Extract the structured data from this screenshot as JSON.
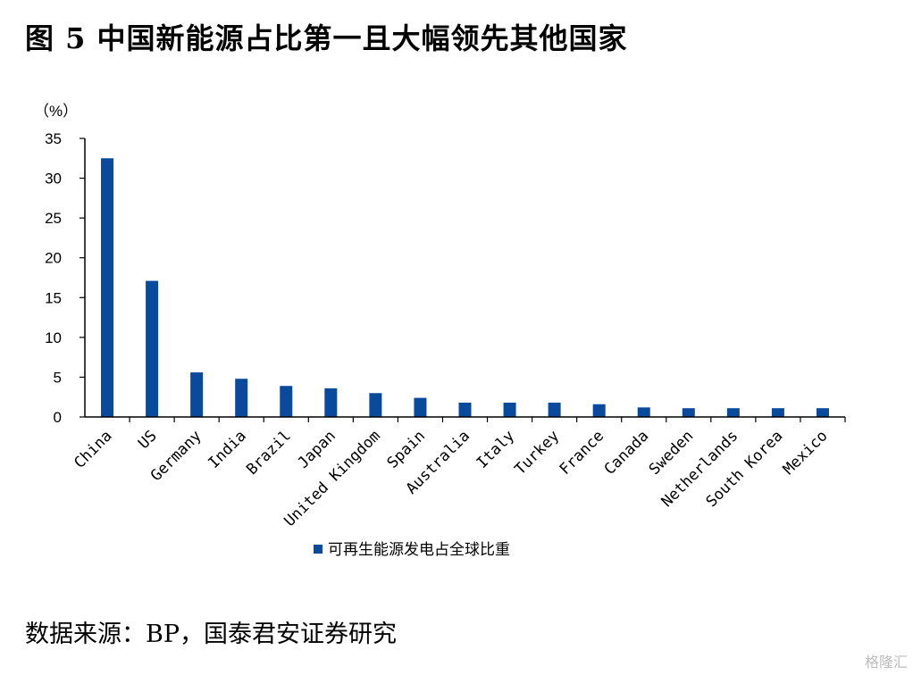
{
  "title": "图 5 中国新能源占比第一且大幅领先其他国家",
  "source": "数据来源：BP，国泰君安证券研究",
  "watermark": "格隆汇",
  "colors": {
    "bar": "#0a4a9c",
    "axis": "#000000"
  },
  "chart_data": {
    "type": "bar",
    "unit_label": "（%）",
    "ylim": [
      0,
      35
    ],
    "yticks": [
      0,
      5,
      10,
      15,
      20,
      25,
      30,
      35
    ],
    "grid": false,
    "legend_position": "bottom",
    "categories": [
      "China",
      "US",
      "Germany",
      "India",
      "Brazil",
      "Japan",
      "United Kingdom",
      "Spain",
      "Australia",
      "Italy",
      "Turkey",
      "France",
      "Canada",
      "Sweden",
      "Netherlands",
      "South Korea",
      "Mexico"
    ],
    "series": [
      {
        "name": "可再生能源发电占全球比重",
        "values": [
          32.5,
          17.1,
          5.6,
          4.8,
          3.9,
          3.6,
          3.0,
          2.4,
          1.8,
          1.8,
          1.8,
          1.6,
          1.2,
          1.1,
          1.1,
          1.1,
          1.1
        ]
      }
    ]
  }
}
